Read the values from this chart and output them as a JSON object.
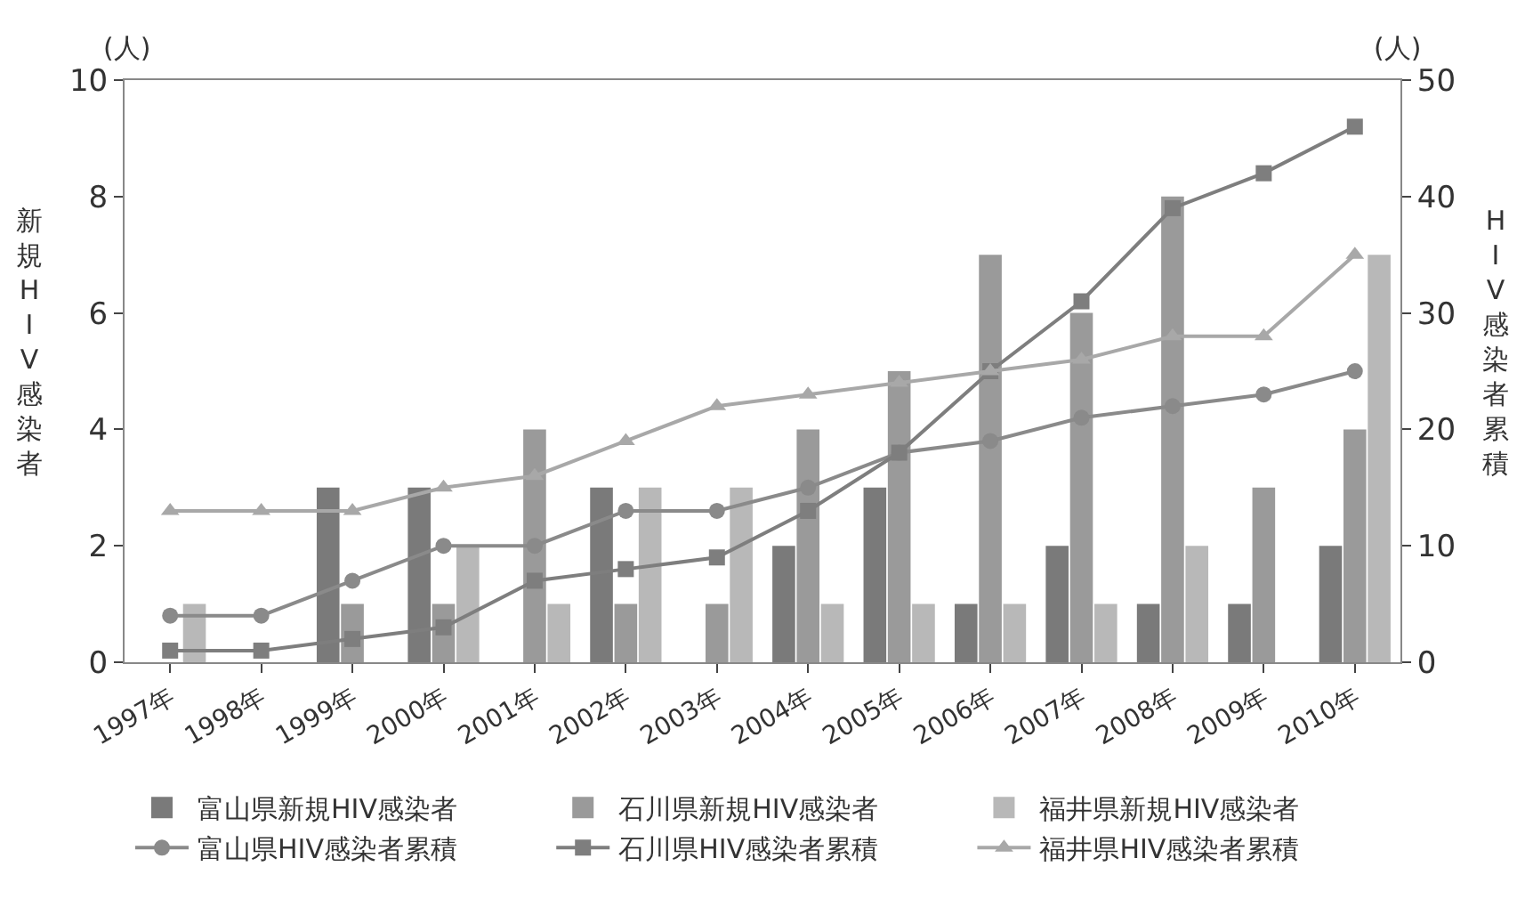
{
  "chart_data": {
    "type": "bar",
    "ylabel": "新規HIV感染者",
    "y2label": "HIV感染者累積",
    "annotations": [
      "(人)",
      "(人)"
    ],
    "categories": [
      "1997年",
      "1998年",
      "1999年",
      "2000年",
      "2001年",
      "2002年",
      "2003年",
      "2004年",
      "2005年",
      "2006年",
      "2007年",
      "2008年",
      "2009年",
      "2010年"
    ],
    "series": [
      {
        "name": "富山県新規HIV感染者",
        "color": "#7a7a7a",
        "values": [
          0,
          0,
          3,
          3,
          0,
          3,
          0,
          2,
          3,
          1,
          2,
          1,
          1,
          2
        ]
      },
      {
        "name": "石川県新規HIV感染者",
        "color": "#9a9a9a",
        "values": [
          0,
          0,
          1,
          1,
          4,
          1,
          1,
          4,
          5,
          7,
          6,
          8,
          3,
          4
        ]
      },
      {
        "name": "福井県新規HIV感染者",
        "color": "#b8b8b8",
        "values": [
          1,
          0,
          0,
          2,
          1,
          3,
          3,
          1,
          1,
          1,
          1,
          2,
          0,
          7
        ]
      },
      {
        "name": "富山県HIV感染者累積",
        "type": "line",
        "axis": "y2",
        "marker": "circle",
        "color": "#8a8a8a",
        "values": [
          4,
          4,
          7,
          10,
          10,
          13,
          13,
          15,
          18,
          19,
          21,
          22,
          23,
          25
        ]
      },
      {
        "name": "石川県HIV感染者累積",
        "type": "line",
        "axis": "y2",
        "marker": "square",
        "color": "#7e7e7e",
        "values": [
          1,
          1,
          2,
          3,
          7,
          8,
          9,
          13,
          18,
          25,
          31,
          39,
          42,
          46
        ]
      },
      {
        "name": "福井県HIV感染者累積",
        "type": "line",
        "axis": "y2",
        "marker": "triangle",
        "color": "#a8a8a8",
        "values": [
          13,
          13,
          13,
          15,
          16,
          19,
          22,
          23,
          24,
          25,
          26,
          28,
          28,
          35
        ]
      }
    ],
    "ylim": [
      0,
      10
    ],
    "yticks": [
      0,
      2,
      4,
      6,
      8,
      10
    ],
    "y2lim": [
      0,
      50
    ],
    "y2ticks": [
      0,
      10,
      20,
      30,
      40,
      50
    ],
    "legend": "bottom",
    "line_style": "solid"
  }
}
